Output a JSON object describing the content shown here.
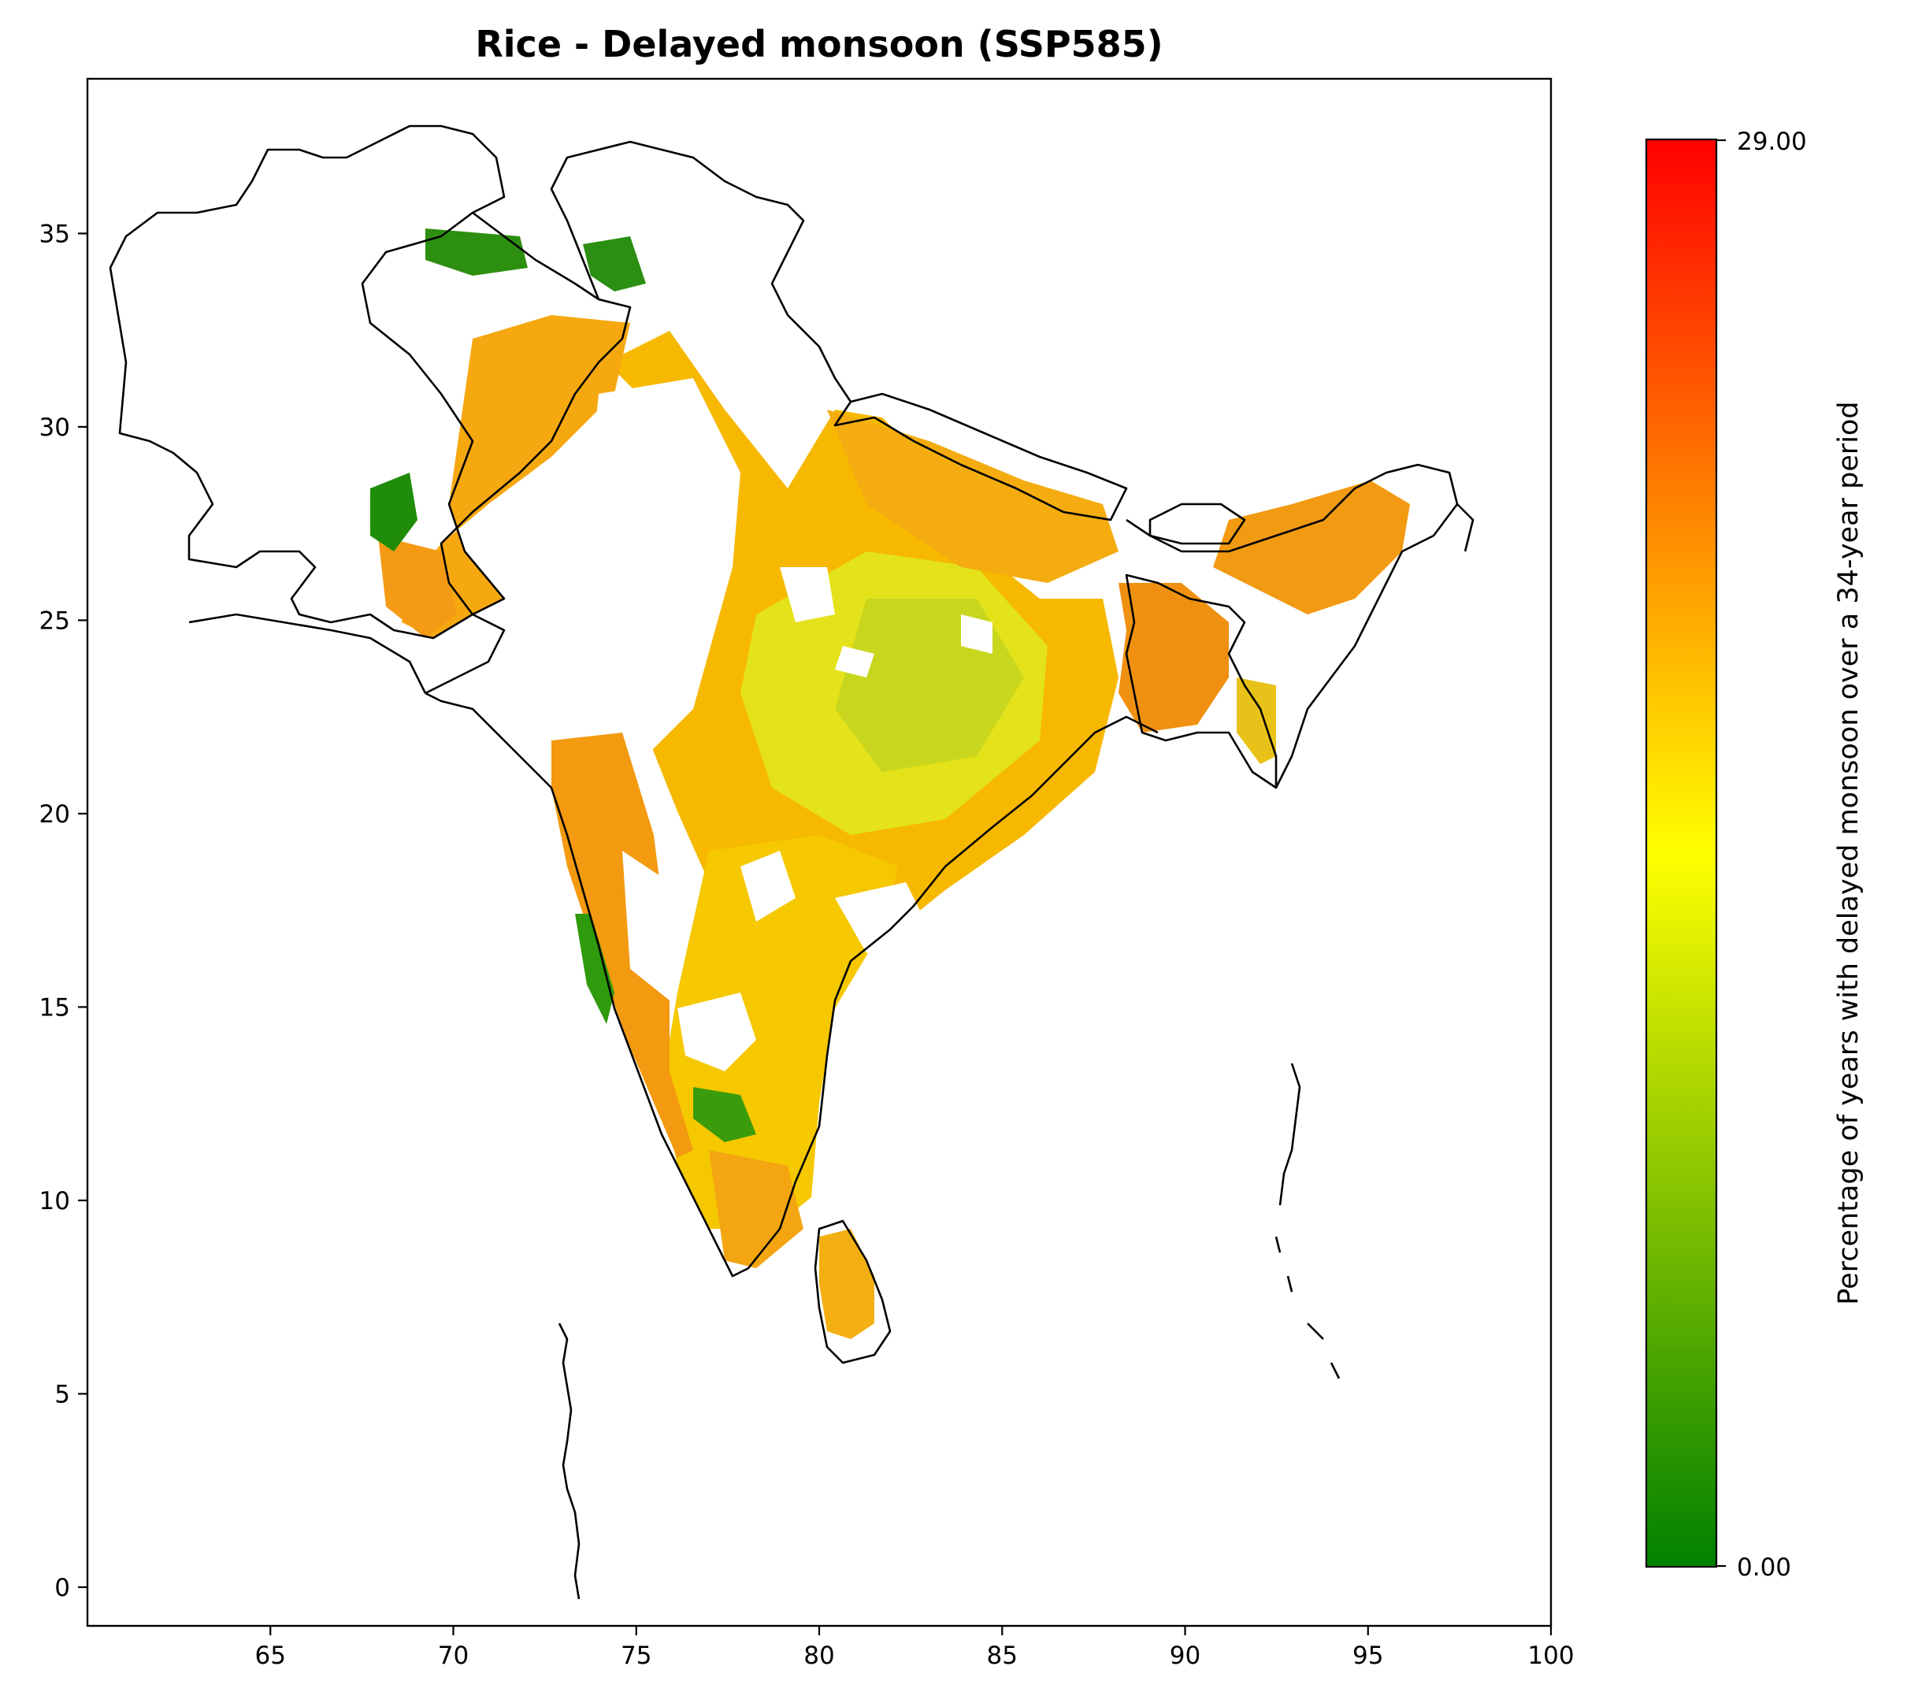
{
  "title": "Rice - Delayed monsoon (SSP585)",
  "map": {
    "x_ticks": [
      65,
      70,
      75,
      80,
      85,
      90,
      95,
      100
    ],
    "y_ticks": [
      0,
      5,
      10,
      15,
      20,
      25,
      30,
      35
    ],
    "xlim": [
      60,
      100
    ],
    "ylim": [
      -1,
      39
    ],
    "colorbar": {
      "label": "Percentage of years with delayed monsoon over a 34-year period",
      "min_label": "0.00",
      "max_label": "29.00",
      "range": [
        0,
        29
      ],
      "colors": [
        "#008000",
        "#ffff00",
        "#ff0000"
      ]
    }
  }
}
